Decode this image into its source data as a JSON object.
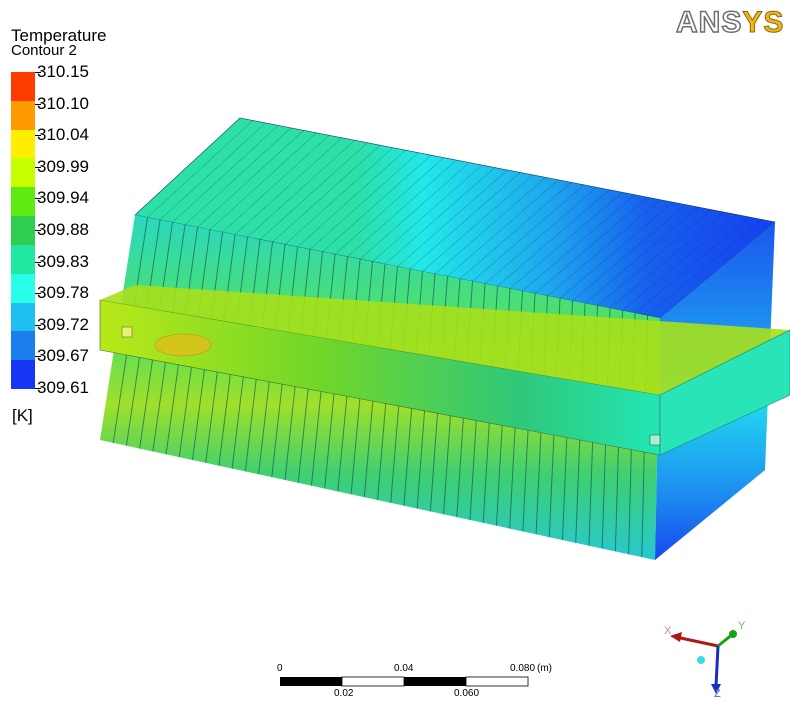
{
  "legend": {
    "title": "Temperature",
    "subtitle": "Contour 2",
    "unit": "[K]",
    "values": [
      "310.15",
      "310.10",
      "310.04",
      "309.99",
      "309.94",
      "309.88",
      "309.83",
      "309.78",
      "309.72",
      "309.67",
      "309.61"
    ],
    "colors": [
      "#ff3c00",
      "#ff9a00",
      "#ffee00",
      "#c8ff00",
      "#5fea12",
      "#2fce52",
      "#20e8a0",
      "#28ffe8",
      "#1ec0f0",
      "#1a7fec",
      "#1536f2"
    ]
  },
  "logo": {
    "part1": "ANS",
    "part2": "YS"
  },
  "scale": {
    "top_labels": [
      "0",
      "0.04",
      "0.080"
    ],
    "unit": "(m)",
    "bottom_labels": [
      "0.02",
      "0.060"
    ]
  },
  "axes": {
    "x": "X",
    "y": "Y",
    "z": "Z"
  }
}
